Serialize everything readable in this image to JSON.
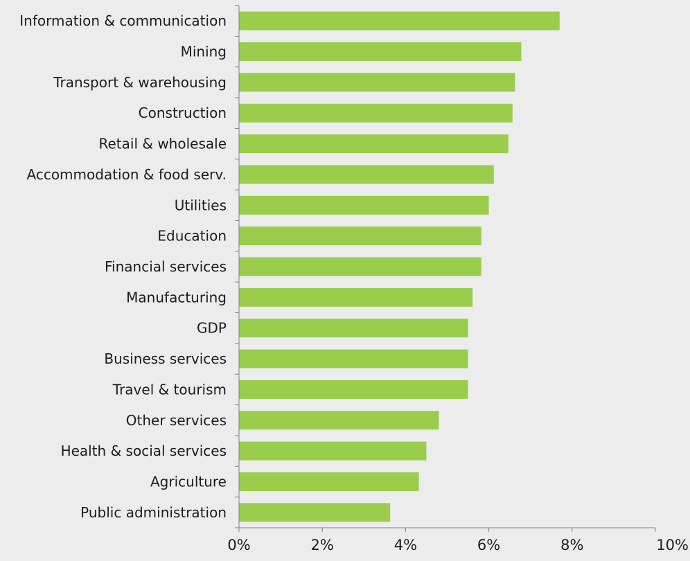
{
  "colors": {
    "background": "#ececec",
    "bar": "#9acd4c",
    "axis": "#7f7f7f",
    "text": "#1c1c1c"
  },
  "chart_data": {
    "type": "bar",
    "orientation": "horizontal",
    "title": "",
    "xlabel": "",
    "ylabel": "",
    "categories": [
      "Information & communication",
      "Mining",
      "Transport & warehousing",
      "Construction",
      "Retail & wholesale",
      "Accommodation & food serv.",
      "Utilities",
      "Education",
      "Financial services",
      "Manufacturing",
      "GDP",
      "Business services",
      "Travel & tourism",
      "Other services",
      "Health & social services",
      "Agriculture",
      "Public administration"
    ],
    "values": [
      7.7,
      6.78,
      6.63,
      6.57,
      6.47,
      6.12,
      6.0,
      5.82,
      5.82,
      5.61,
      5.5,
      5.5,
      5.5,
      4.8,
      4.5,
      4.32,
      3.63
    ],
    "xlim": [
      0,
      10
    ],
    "xticks": [
      0,
      2,
      4,
      6,
      8,
      10
    ],
    "xtick_labels": [
      "0%",
      "2%",
      "4%",
      "6%",
      "8%",
      "10%"
    ],
    "grid": false,
    "legend": "none"
  }
}
